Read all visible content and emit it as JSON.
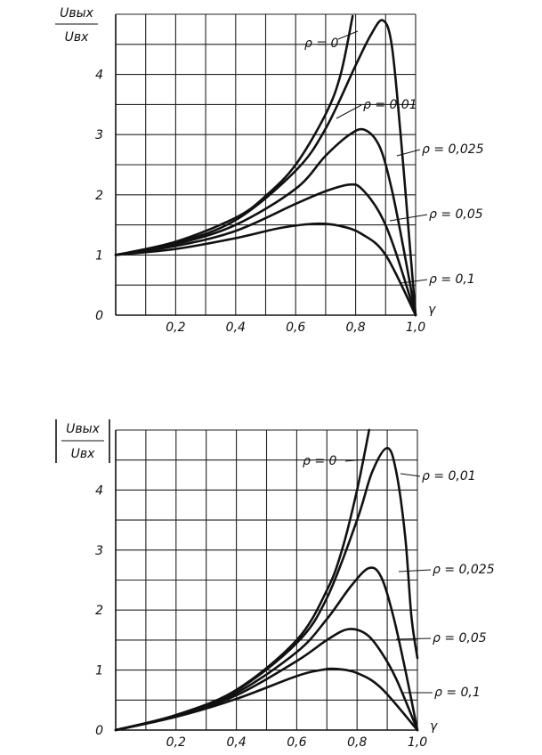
{
  "chart_data": [
    {
      "type": "line",
      "ylabel_top": "Uвых",
      "ylabel_bottom": "Uвх",
      "abs_bars": false,
      "xlabel": "γ",
      "xlim": [
        0,
        1.0
      ],
      "ylim": [
        0,
        5
      ],
      "xticks": [
        "0,2",
        "0,4",
        "0,6",
        "0,8",
        "1,0"
      ],
      "yticks": [
        "0",
        "1",
        "2",
        "3",
        "4"
      ],
      "grid": true,
      "series": [
        {
          "name": "ρ = 0",
          "x": [
            0.0,
            0.2,
            0.4,
            0.5,
            0.6,
            0.7,
            0.75,
            0.79
          ],
          "y": [
            1.0,
            1.22,
            1.62,
            1.98,
            2.5,
            3.34,
            4.0,
            4.97
          ]
        },
        {
          "name": "ρ = 0,01",
          "x": [
            0.0,
            0.2,
            0.4,
            0.6,
            0.7,
            0.8,
            0.85,
            0.89,
            0.92,
            0.95,
            0.98,
            1.0
          ],
          "y": [
            1.0,
            1.2,
            1.58,
            2.4,
            3.1,
            4.15,
            4.65,
            4.9,
            4.5,
            3.0,
            1.2,
            0.0
          ]
        },
        {
          "name": "ρ = 0,025",
          "x": [
            0.0,
            0.2,
            0.4,
            0.6,
            0.7,
            0.78,
            0.83,
            0.88,
            0.92,
            0.96,
            1.0
          ],
          "y": [
            1.0,
            1.18,
            1.5,
            2.1,
            2.65,
            3.0,
            3.08,
            2.8,
            2.1,
            1.1,
            0.0
          ]
        },
        {
          "name": "ρ = 0,05",
          "x": [
            0.0,
            0.2,
            0.4,
            0.6,
            0.7,
            0.78,
            0.82,
            0.88,
            0.93,
            1.0
          ],
          "y": [
            1.0,
            1.15,
            1.4,
            1.85,
            2.06,
            2.17,
            2.1,
            1.7,
            1.1,
            0.0
          ]
        },
        {
          "name": "ρ = 0,1",
          "x": [
            0.0,
            0.2,
            0.4,
            0.55,
            0.67,
            0.75,
            0.82,
            0.9,
            1.0
          ],
          "y": [
            1.0,
            1.1,
            1.28,
            1.45,
            1.52,
            1.48,
            1.35,
            1.0,
            0.0
          ]
        }
      ]
    },
    {
      "type": "line",
      "ylabel_top": "Uвых",
      "ylabel_bottom": "Uвх",
      "abs_bars": true,
      "xlabel": "γ",
      "xlim": [
        0,
        1.0
      ],
      "ylim": [
        0,
        5
      ],
      "xticks": [
        "0,2",
        "0,4",
        "0,6",
        "0,8",
        "1,0"
      ],
      "yticks": [
        "0",
        "1",
        "2",
        "3",
        "4"
      ],
      "grid": true,
      "series": [
        {
          "name": "ρ = 0",
          "x": [
            0.0,
            0.2,
            0.4,
            0.6,
            0.7,
            0.75,
            0.8,
            0.84
          ],
          "y": [
            0.0,
            0.25,
            0.67,
            1.5,
            2.33,
            3.0,
            4.0,
            5.0
          ]
        },
        {
          "name": "ρ = 0,01",
          "x": [
            0.0,
            0.2,
            0.4,
            0.6,
            0.7,
            0.8,
            0.85,
            0.9,
            0.93,
            0.96,
            0.98,
            1.0
          ],
          "y": [
            0.0,
            0.25,
            0.66,
            1.45,
            2.2,
            3.5,
            4.3,
            4.7,
            4.3,
            3.2,
            1.9,
            1.2
          ]
        },
        {
          "name": "ρ = 0,025",
          "x": [
            0.0,
            0.2,
            0.4,
            0.6,
            0.7,
            0.78,
            0.84,
            0.88,
            0.92,
            0.96,
            1.0
          ],
          "y": [
            0.0,
            0.24,
            0.62,
            1.3,
            1.85,
            2.4,
            2.7,
            2.55,
            1.9,
            1.0,
            0.0
          ]
        },
        {
          "name": "ρ = 0,05",
          "x": [
            0.0,
            0.2,
            0.4,
            0.6,
            0.7,
            0.77,
            0.83,
            0.88,
            0.93,
            1.0
          ],
          "y": [
            0.0,
            0.23,
            0.58,
            1.15,
            1.5,
            1.68,
            1.6,
            1.3,
            0.85,
            0.0
          ]
        },
        {
          "name": "ρ = 0,1",
          "x": [
            0.0,
            0.2,
            0.4,
            0.6,
            0.68,
            0.73,
            0.8,
            0.88,
            1.0
          ],
          "y": [
            0.0,
            0.22,
            0.52,
            0.9,
            1.0,
            1.02,
            0.95,
            0.7,
            0.0
          ]
        }
      ]
    }
  ]
}
